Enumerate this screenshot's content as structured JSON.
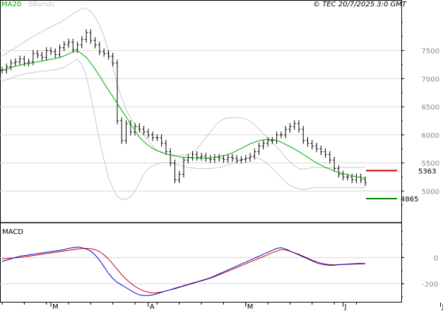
{
  "header": {
    "legend_ma": "MA20",
    "legend_bb": "BBands",
    "copyright": "© TEC 20/7/2025 3:0 GMT"
  },
  "colors": {
    "price": "#000000",
    "ma": "#00aa00",
    "bbands": "#c8c8c8",
    "resistance": "#cc0000",
    "support": "#008800",
    "macd": "#0000cc",
    "signal": "#cc0000",
    "grid": "#d8d8d8",
    "axis_text": "#888888"
  },
  "chart_data": [
    {
      "type": "candlestick",
      "title": "",
      "ylim": [
        4500,
        8300
      ],
      "y_ticks": [
        5000,
        5500,
        6000,
        6500,
        7000,
        7500
      ],
      "y_tick_labels": [
        "5000",
        "5500",
        "6000",
        "6500",
        "7000",
        "7500"
      ],
      "x_month_labels": [
        "M",
        "A",
        "M",
        "J",
        "J"
      ],
      "x_month_label_index": [
        11,
        33,
        55,
        77,
        99
      ],
      "series": [
        {
          "name": "MA20",
          "values": [
            7150,
            7175,
            7200,
            7220,
            7240,
            7255,
            7270,
            7285,
            7300,
            7315,
            7330,
            7345,
            7360,
            7380,
            7405,
            7440,
            7480,
            7500,
            7440,
            7380,
            7280,
            7170,
            7050,
            6920,
            6800,
            6680,
            6560,
            6440,
            6320,
            6200,
            6080,
            5960,
            5880,
            5810,
            5760,
            5720,
            5690,
            5660,
            5640,
            5625,
            5610,
            5600,
            5595,
            5590,
            5588,
            5585,
            5585,
            5590,
            5600,
            5615,
            5630,
            5650,
            5680,
            5720,
            5760,
            5800,
            5840,
            5870,
            5895,
            5910,
            5920,
            5915,
            5900,
            5870,
            5830,
            5790,
            5750,
            5700,
            5650,
            5600,
            5550,
            5500,
            5460,
            5420,
            5390,
            5360,
            5330,
            5310,
            5290,
            5270,
            5255,
            5240,
            5230
          ]
        },
        {
          "name": "BBands upper",
          "values": [
            7400,
            7450,
            7500,
            7550,
            7600,
            7650,
            7700,
            7750,
            7800,
            7840,
            7880,
            7920,
            7960,
            8000,
            8050,
            8100,
            8150,
            8200,
            8250,
            8250,
            8200,
            8100,
            7950,
            7750,
            7500,
            7200,
            6900,
            6650,
            6450,
            6300,
            6180,
            6080,
            6000,
            5900,
            5800,
            5720,
            5680,
            5660,
            5650,
            5640,
            5640,
            5640,
            5650,
            5680,
            5750,
            5850,
            5950,
            6050,
            6150,
            6230,
            6280,
            6300,
            6310,
            6310,
            6300,
            6280,
            6240,
            6180,
            6100,
            6020,
            5940,
            5860,
            5780,
            5700,
            5600,
            5520,
            5450,
            5400,
            5390,
            5400,
            5420,
            5420,
            5420,
            5420,
            5420,
            5420,
            5420,
            5420,
            5420,
            5420,
            5420,
            5420,
            5420
          ]
        },
        {
          "name": "BBands lower",
          "values": [
            6950,
            6980,
            7010,
            7040,
            7060,
            7080,
            7100,
            7110,
            7120,
            7130,
            7140,
            7150,
            7160,
            7180,
            7200,
            7250,
            7300,
            7350,
            7250,
            7050,
            6700,
            6300,
            5900,
            5550,
            5250,
            5050,
            4900,
            4850,
            4850,
            4900,
            5000,
            5150,
            5300,
            5400,
            5450,
            5480,
            5500,
            5510,
            5500,
            5480,
            5460,
            5440,
            5420,
            5410,
            5400,
            5400,
            5400,
            5400,
            5410,
            5420,
            5440,
            5460,
            5490,
            5520,
            5550,
            5580,
            5600,
            5600,
            5580,
            5540,
            5480,
            5400,
            5320,
            5240,
            5160,
            5100,
            5060,
            5040,
            5030,
            5040,
            5060,
            5060,
            5060,
            5060,
            5060,
            5060,
            5060,
            5060,
            5060,
            5060,
            5060,
            5060,
            5060
          ]
        },
        {
          "name": "Price",
          "values": [
            7150,
            7210,
            7280,
            7300,
            7350,
            7280,
            7300,
            7450,
            7420,
            7380,
            7500,
            7480,
            7430,
            7550,
            7610,
            7650,
            7520,
            7600,
            7700,
            7820,
            7680,
            7600,
            7480,
            7450,
            7400,
            7280,
            6250,
            5900,
            6200,
            6050,
            6150,
            6100,
            6050,
            6000,
            5950,
            5950,
            5850,
            5700,
            5500,
            5200,
            5300,
            5550,
            5600,
            5650,
            5600,
            5620,
            5580,
            5560,
            5600,
            5580,
            5560,
            5600,
            5580,
            5550,
            5560,
            5580,
            5620,
            5700,
            5800,
            5850,
            5900,
            5900,
            6000,
            6000,
            6100,
            6150,
            6200,
            6100,
            5900,
            5850,
            5800,
            5750,
            5700,
            5650,
            5550,
            5400,
            5300,
            5250,
            5250,
            5200,
            5250,
            5200,
            5150
          ]
        }
      ],
      "levels": [
        {
          "value": 5363,
          "label": "5363"
        },
        {
          "value": 4865,
          "label": "4865"
        }
      ]
    },
    {
      "type": "line",
      "title": "MACD",
      "ylim": [
        -300,
        250
      ],
      "y_ticks": [
        0,
        -200
      ],
      "y_tick_labels": [
        "0",
        "-200"
      ],
      "series": [
        {
          "name": "MACD",
          "values": [
            -30,
            -20,
            -10,
            0,
            10,
            15,
            20,
            25,
            30,
            35,
            40,
            45,
            50,
            55,
            60,
            70,
            75,
            80,
            75,
            65,
            50,
            20,
            -20,
            -70,
            -120,
            -160,
            -190,
            -210,
            -230,
            -250,
            -270,
            -285,
            -290,
            -290,
            -285,
            -275,
            -265,
            -255,
            -245,
            -235,
            -225,
            -215,
            -205,
            -195,
            -185,
            -175,
            -165,
            -155,
            -140,
            -125,
            -110,
            -95,
            -80,
            -65,
            -50,
            -35,
            -20,
            -5,
            10,
            25,
            40,
            55,
            70,
            75,
            65,
            50,
            35,
            20,
            5,
            -10,
            -25,
            -40,
            -50,
            -55,
            -60,
            -58,
            -55,
            -52,
            -50,
            -48,
            -46,
            -45,
            -46
          ]
        },
        {
          "name": "Signal",
          "values": [
            -10,
            -8,
            -5,
            -2,
            0,
            5,
            10,
            15,
            20,
            25,
            30,
            35,
            40,
            45,
            50,
            55,
            60,
            65,
            68,
            70,
            68,
            60,
            45,
            20,
            -10,
            -50,
            -90,
            -130,
            -165,
            -195,
            -220,
            -240,
            -255,
            -265,
            -270,
            -268,
            -262,
            -255,
            -246,
            -238,
            -228,
            -218,
            -208,
            -198,
            -188,
            -178,
            -168,
            -158,
            -145,
            -132,
            -118,
            -104,
            -90,
            -76,
            -62,
            -48,
            -34,
            -20,
            -6,
            8,
            22,
            36,
            50,
            60,
            58,
            48,
            36,
            24,
            10,
            -5,
            -20,
            -32,
            -42,
            -50,
            -54,
            -55,
            -54,
            -53,
            -52,
            -51,
            -50,
            -49,
            -48
          ]
        }
      ]
    }
  ]
}
